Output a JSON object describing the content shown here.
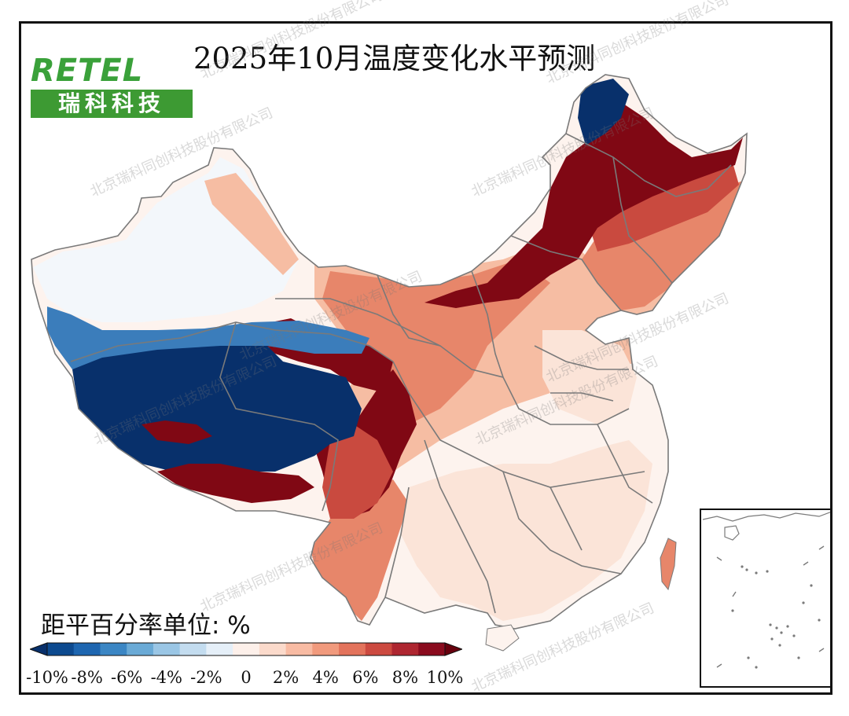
{
  "title": "2025年10月温度变化水平预测",
  "logo": {
    "latin_text": "RETEL",
    "chinese_text": "瑞科科技",
    "text_color": "#3aa13a",
    "box_color": "#3d9a33"
  },
  "watermark": {
    "text": "北京瑞科同创科技股份有限公司"
  },
  "unit_label": "距平百分率单位: %",
  "legend": {
    "colors": [
      "#08306b",
      "#0d4a8f",
      "#1e66b0",
      "#3b86c4",
      "#6aaad6",
      "#9ac6e5",
      "#c3dcef",
      "#e5eff8",
      "#fdf0ea",
      "#fbdacb",
      "#f8bba3",
      "#f19a7d",
      "#e3735c",
      "#cc4a40",
      "#ae2630",
      "#8a0b1e",
      "#67000d"
    ],
    "ticks": [
      "-10%",
      "-8%",
      "-6%",
      "-4%",
      "-2%",
      "0",
      "2%",
      "4%",
      "6%",
      "8%",
      "10%"
    ]
  },
  "map_colors": {
    "strong_warm": "#800814",
    "warm": "#c94a3f",
    "mid_warm": "#e7866a",
    "light_warm": "#f6bda3",
    "pale_warm": "#fbe4d8",
    "near_zero": "#fdf3ee",
    "pale_cool": "#f3f7fb",
    "strong_cool": "#08306b",
    "mid_cool": "#3b7dbb",
    "border": "#7a7a7a"
  }
}
